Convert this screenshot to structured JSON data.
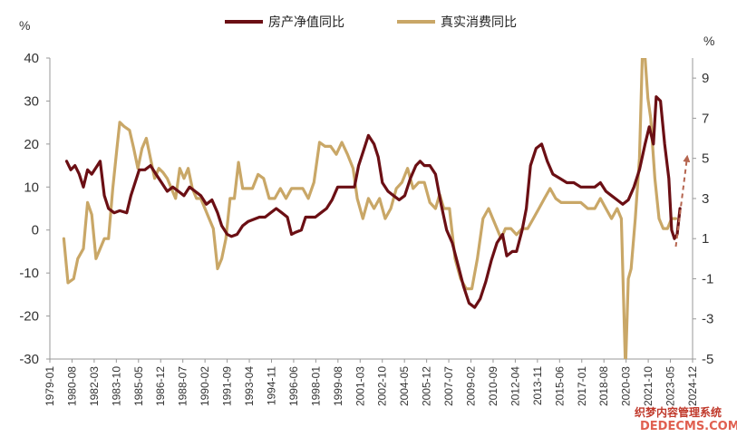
{
  "chart_data": {
    "type": "line",
    "title": "",
    "left_axis": {
      "unit": "%",
      "ylim": [
        -30,
        40
      ],
      "ticks": [
        40,
        30,
        20,
        10,
        0,
        -10,
        -20,
        -30
      ]
    },
    "right_axis": {
      "unit": "%",
      "ylim": [
        -5,
        10
      ],
      "ticks": [
        9,
        7,
        5,
        3,
        1,
        -1,
        -3,
        -5
      ]
    },
    "legend_position": "top-center",
    "x_tick_labels": [
      "1979-01",
      "1980-08",
      "1982-03",
      "1983-10",
      "1985-05",
      "1986-12",
      "1988-07",
      "1990-02",
      "1991-09",
      "1993-04",
      "1994-11",
      "1996-06",
      "1998-01",
      "1999-08",
      "2001-03",
      "2002-10",
      "2004-05",
      "2005-12",
      "2007-07",
      "2009-02",
      "2010-09",
      "2012-04",
      "2013-11",
      "2015-06",
      "2017-01",
      "2018-08",
      "2020-03",
      "2021-10",
      "2023-05",
      "2024-12"
    ],
    "x_range": [
      1979.0,
      2025.0
    ],
    "series": [
      {
        "name": "房产净值同比",
        "axis": "left",
        "color": "#6b0f14",
        "points": [
          [
            1980.2,
            16
          ],
          [
            1980.5,
            14
          ],
          [
            1980.8,
            15
          ],
          [
            1981.1,
            13
          ],
          [
            1981.4,
            10
          ],
          [
            1981.7,
            14
          ],
          [
            1982.0,
            13
          ],
          [
            1982.4,
            15
          ],
          [
            1982.6,
            16
          ],
          [
            1982.9,
            8
          ],
          [
            1983.2,
            5
          ],
          [
            1983.6,
            4
          ],
          [
            1984.0,
            4.5
          ],
          [
            1984.5,
            4
          ],
          [
            1984.8,
            8
          ],
          [
            1985.1,
            11
          ],
          [
            1985.4,
            14
          ],
          [
            1985.8,
            14
          ],
          [
            1986.2,
            15
          ],
          [
            1986.6,
            13
          ],
          [
            1987.0,
            11
          ],
          [
            1987.4,
            9
          ],
          [
            1987.8,
            10
          ],
          [
            1988.2,
            9
          ],
          [
            1988.6,
            8
          ],
          [
            1989.0,
            10
          ],
          [
            1989.4,
            9
          ],
          [
            1989.8,
            8
          ],
          [
            1990.2,
            6
          ],
          [
            1990.6,
            7
          ],
          [
            1991.0,
            4
          ],
          [
            1991.3,
            1
          ],
          [
            1991.7,
            -1
          ],
          [
            1992.0,
            -1.5
          ],
          [
            1992.4,
            -1
          ],
          [
            1992.8,
            1
          ],
          [
            1993.2,
            2
          ],
          [
            1993.6,
            2.5
          ],
          [
            1994.0,
            3
          ],
          [
            1994.4,
            3
          ],
          [
            1994.8,
            4
          ],
          [
            1995.2,
            5
          ],
          [
            1995.6,
            4
          ],
          [
            1996.0,
            3
          ],
          [
            1996.3,
            -1
          ],
          [
            1996.6,
            -0.5
          ],
          [
            1997.0,
            0
          ],
          [
            1997.3,
            3
          ],
          [
            1997.6,
            3
          ],
          [
            1998.0,
            3
          ],
          [
            1998.4,
            4
          ],
          [
            1998.8,
            5
          ],
          [
            1999.2,
            7
          ],
          [
            1999.6,
            10
          ],
          [
            2000.0,
            10
          ],
          [
            2000.4,
            10
          ],
          [
            2000.8,
            10
          ],
          [
            2001.1,
            15
          ],
          [
            2001.5,
            19
          ],
          [
            2001.8,
            22
          ],
          [
            2002.2,
            20
          ],
          [
            2002.5,
            17
          ],
          [
            2002.8,
            11
          ],
          [
            2003.2,
            9
          ],
          [
            2003.6,
            8
          ],
          [
            2004.0,
            7
          ],
          [
            2004.4,
            8
          ],
          [
            2004.8,
            12
          ],
          [
            2005.2,
            15
          ],
          [
            2005.5,
            16
          ],
          [
            2005.8,
            15
          ],
          [
            2006.2,
            15
          ],
          [
            2006.6,
            13
          ],
          [
            2007.0,
            6
          ],
          [
            2007.4,
            0
          ],
          [
            2007.8,
            -3
          ],
          [
            2008.2,
            -8
          ],
          [
            2008.6,
            -13
          ],
          [
            2009.0,
            -17
          ],
          [
            2009.4,
            -18
          ],
          [
            2009.8,
            -16
          ],
          [
            2010.2,
            -12
          ],
          [
            2010.6,
            -7
          ],
          [
            2011.0,
            -3
          ],
          [
            2011.4,
            -1
          ],
          [
            2011.7,
            -6
          ],
          [
            2012.1,
            -5
          ],
          [
            2012.4,
            -5
          ],
          [
            2012.8,
            0
          ],
          [
            2013.1,
            5
          ],
          [
            2013.4,
            15
          ],
          [
            2013.8,
            19
          ],
          [
            2014.2,
            20
          ],
          [
            2014.6,
            16
          ],
          [
            2015.0,
            13
          ],
          [
            2015.5,
            12
          ],
          [
            2016.0,
            11
          ],
          [
            2016.5,
            11
          ],
          [
            2017.0,
            10
          ],
          [
            2017.5,
            10
          ],
          [
            2018.0,
            10
          ],
          [
            2018.4,
            11
          ],
          [
            2018.8,
            9
          ],
          [
            2019.2,
            8
          ],
          [
            2019.6,
            7
          ],
          [
            2020.0,
            6
          ],
          [
            2020.4,
            7
          ],
          [
            2020.8,
            10
          ],
          [
            2021.2,
            14
          ],
          [
            2021.6,
            20
          ],
          [
            2021.9,
            24
          ],
          [
            2022.2,
            20
          ],
          [
            2022.4,
            31
          ],
          [
            2022.7,
            30
          ],
          [
            2023.0,
            20
          ],
          [
            2023.3,
            12
          ],
          [
            2023.5,
            0
          ],
          [
            2023.7,
            -2
          ],
          [
            2023.9,
            -1
          ],
          [
            2024.1,
            5
          ]
        ]
      },
      {
        "name": "真实消费同比",
        "axis": "right",
        "color": "#c9a767",
        "points": [
          [
            1980.0,
            1
          ],
          [
            1980.3,
            -1.2
          ],
          [
            1980.7,
            -1
          ],
          [
            1981.0,
            0
          ],
          [
            1981.4,
            0.5
          ],
          [
            1981.7,
            2.8
          ],
          [
            1982.0,
            2.2
          ],
          [
            1982.3,
            0
          ],
          [
            1982.6,
            0.5
          ],
          [
            1982.9,
            1
          ],
          [
            1983.2,
            1
          ],
          [
            1983.5,
            3.5
          ],
          [
            1983.8,
            5.5
          ],
          [
            1984.0,
            6.8
          ],
          [
            1984.3,
            6.6
          ],
          [
            1984.7,
            6.4
          ],
          [
            1985.0,
            5.5
          ],
          [
            1985.3,
            4.5
          ],
          [
            1985.6,
            5.5
          ],
          [
            1985.9,
            6
          ],
          [
            1986.2,
            5
          ],
          [
            1986.5,
            4
          ],
          [
            1986.8,
            4.5
          ],
          [
            1987.1,
            4.3
          ],
          [
            1987.4,
            4
          ],
          [
            1987.7,
            3.5
          ],
          [
            1988.0,
            3
          ],
          [
            1988.3,
            4.5
          ],
          [
            1988.6,
            4
          ],
          [
            1988.9,
            4.5
          ],
          [
            1989.2,
            3.5
          ],
          [
            1989.5,
            3
          ],
          [
            1989.8,
            3
          ],
          [
            1990.1,
            2.5
          ],
          [
            1990.4,
            2
          ],
          [
            1990.7,
            1.5
          ],
          [
            1991.0,
            -0.5
          ],
          [
            1991.3,
            0
          ],
          [
            1991.6,
            1
          ],
          [
            1991.9,
            3
          ],
          [
            1992.2,
            3
          ],
          [
            1992.5,
            4.8
          ],
          [
            1992.8,
            3.5
          ],
          [
            1993.1,
            3.5
          ],
          [
            1993.5,
            3.5
          ],
          [
            1993.9,
            4.2
          ],
          [
            1994.3,
            4
          ],
          [
            1994.7,
            3
          ],
          [
            1995.1,
            3
          ],
          [
            1995.5,
            3.5
          ],
          [
            1995.9,
            3
          ],
          [
            1996.3,
            3.5
          ],
          [
            1996.7,
            3.5
          ],
          [
            1997.1,
            3.5
          ],
          [
            1997.5,
            3
          ],
          [
            1997.9,
            3.8
          ],
          [
            1998.3,
            5.8
          ],
          [
            1998.7,
            5.6
          ],
          [
            1999.1,
            5.6
          ],
          [
            1999.5,
            5.2
          ],
          [
            1999.9,
            5.8
          ],
          [
            2000.3,
            5.2
          ],
          [
            2000.7,
            4.5
          ],
          [
            2001.0,
            3
          ],
          [
            2001.4,
            2
          ],
          [
            2001.8,
            3
          ],
          [
            2002.2,
            2.5
          ],
          [
            2002.6,
            3
          ],
          [
            2003.0,
            2
          ],
          [
            2003.4,
            2.5
          ],
          [
            2003.8,
            3.5
          ],
          [
            2004.2,
            3.8
          ],
          [
            2004.6,
            4.5
          ],
          [
            2005.0,
            3.5
          ],
          [
            2005.4,
            3.8
          ],
          [
            2005.8,
            3.8
          ],
          [
            2006.2,
            2.8
          ],
          [
            2006.6,
            2.5
          ],
          [
            2006.9,
            3.2
          ],
          [
            2007.2,
            2.5
          ],
          [
            2007.6,
            2.5
          ],
          [
            2008.0,
            0
          ],
          [
            2008.4,
            -1
          ],
          [
            2008.8,
            -1.5
          ],
          [
            2009.2,
            -1.5
          ],
          [
            2009.6,
            0
          ],
          [
            2010.0,
            2
          ],
          [
            2010.4,
            2.5
          ],
          [
            2010.7,
            2
          ],
          [
            2011.0,
            1.5
          ],
          [
            2011.3,
            1
          ],
          [
            2011.6,
            1.5
          ],
          [
            2012.0,
            1.5
          ],
          [
            2012.4,
            1.2
          ],
          [
            2012.8,
            1.5
          ],
          [
            2013.2,
            1.5
          ],
          [
            2013.6,
            2
          ],
          [
            2014.0,
            2.5
          ],
          [
            2014.4,
            3
          ],
          [
            2014.8,
            3.5
          ],
          [
            2015.2,
            3
          ],
          [
            2015.6,
            2.8
          ],
          [
            2016.0,
            2.8
          ],
          [
            2016.5,
            2.8
          ],
          [
            2017.0,
            2.8
          ],
          [
            2017.5,
            2.5
          ],
          [
            2018.0,
            2.5
          ],
          [
            2018.4,
            3
          ],
          [
            2018.8,
            2.5
          ],
          [
            2019.2,
            2
          ],
          [
            2019.6,
            2.5
          ],
          [
            2019.9,
            2
          ],
          [
            2020.2,
            -5.5
          ],
          [
            2020.4,
            -1
          ],
          [
            2020.6,
            -0.5
          ],
          [
            2020.9,
            2
          ],
          [
            2021.2,
            5
          ],
          [
            2021.4,
            10
          ],
          [
            2021.6,
            10
          ],
          [
            2021.8,
            8
          ],
          [
            2022.0,
            7
          ],
          [
            2022.3,
            4
          ],
          [
            2022.6,
            2
          ],
          [
            2022.9,
            1.5
          ],
          [
            2023.2,
            1.5
          ],
          [
            2023.5,
            2
          ],
          [
            2023.8,
            2
          ]
        ]
      }
    ],
    "annotation": {
      "type": "dashed-arrow",
      "direction": "up",
      "color": "#b5654f"
    }
  },
  "watermark": {
    "line1": "织梦内容管理系统",
    "line2": "DEDECMS.COM"
  }
}
